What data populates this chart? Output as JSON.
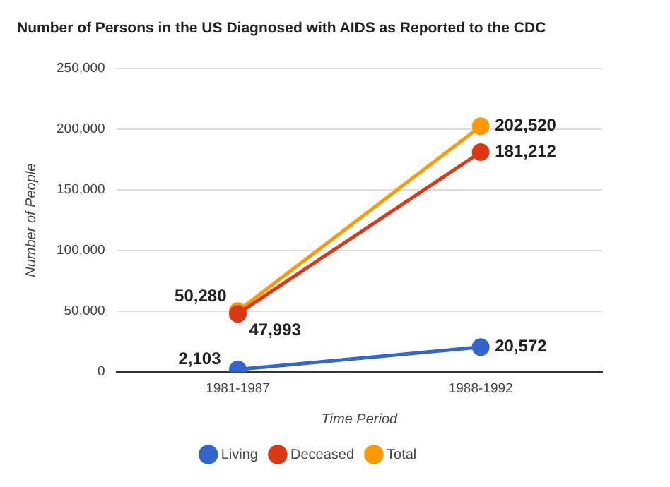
{
  "chart_data": {
    "type": "line",
    "title": "Number of Persons in the US Diagnosed with AIDS as Reported to the CDC",
    "xlabel": "Time Period",
    "ylabel": "Number of People",
    "categories": [
      "1981-1987",
      "1988-1992"
    ],
    "series": [
      {
        "name": "Living",
        "color": "#3366cc",
        "values": [
          2103,
          20572
        ],
        "value_labels": [
          "2,103",
          "20,572"
        ]
      },
      {
        "name": "Deceased",
        "color": "#dc3912",
        "values": [
          47993,
          181212
        ],
        "value_labels": [
          "47,993",
          "181,212"
        ]
      },
      {
        "name": "Total",
        "color": "#ff9900",
        "values": [
          50280,
          202520
        ],
        "value_labels": [
          "50,280",
          "202,520"
        ]
      }
    ],
    "ylim": [
      0,
      250000
    ],
    "yticks": [
      0,
      {
        "value": 50000,
        "label": "50,000"
      },
      {
        "value": 100000,
        "label": "100,000"
      },
      {
        "value": 150000,
        "label": "150,000"
      },
      {
        "value": 200000,
        "label": "200,000"
      },
      {
        "value": 250000,
        "label": "250,000"
      }
    ],
    "grid": "y",
    "legend": "bottom",
    "marker": "circle",
    "line_style": "solid"
  }
}
